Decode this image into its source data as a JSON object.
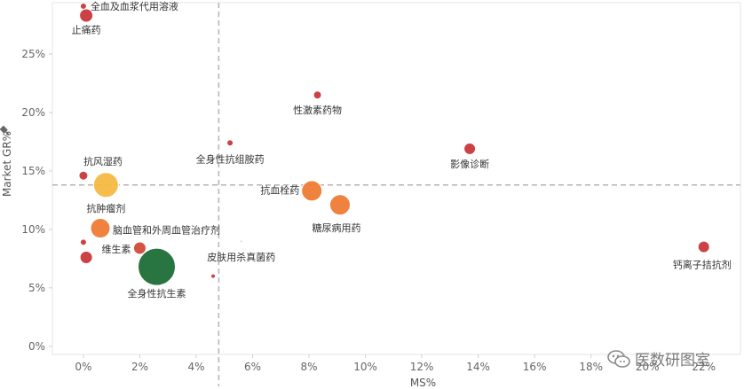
{
  "chart_data": {
    "type": "scatter",
    "xlabel": "MS%",
    "ylabel": "Market GR%",
    "xlim": [
      -0.011,
      0.233
    ],
    "ylim": [
      -0.007,
      0.294
    ],
    "x_ticks": [
      0,
      0.02,
      0.04,
      0.06,
      0.08,
      0.1,
      0.12,
      0.14,
      0.16,
      0.18,
      0.2,
      0.22
    ],
    "x_tick_labels": [
      "0%",
      "2%",
      "4%",
      "6%",
      "8%",
      "10%",
      "12%",
      "14%",
      "16%",
      "18%",
      "20%",
      "22%"
    ],
    "y_ticks": [
      0,
      0.05,
      0.1,
      0.15,
      0.2,
      0.25
    ],
    "y_tick_labels": [
      "0%",
      "5%",
      "10%",
      "15%",
      "20%",
      "25%"
    ],
    "reference_lines": {
      "x": 0.048,
      "y": 0.138
    },
    "grid": false,
    "points": [
      {
        "label": "全血及血浆代用溶液",
        "x": 0.0,
        "y": 0.291,
        "size": 3.5,
        "color": "#c8383a"
      },
      {
        "label": "止痛药",
        "x": 0.001,
        "y": 0.283,
        "size": 7.5,
        "color": "#c8383a"
      },
      {
        "label": "性激素药物",
        "x": 0.083,
        "y": 0.215,
        "size": 4.5,
        "color": "#c8383a"
      },
      {
        "label": "全身性抗组胺药",
        "x": 0.052,
        "y": 0.174,
        "size": 3.5,
        "color": "#c8383a"
      },
      {
        "label": "影像诊断",
        "x": 0.137,
        "y": 0.169,
        "size": 6.5,
        "color": "#c8383a"
      },
      {
        "label": "抗风湿药",
        "x": 0.0,
        "y": 0.146,
        "size": 5,
        "color": "#c8383a"
      },
      {
        "label": "抗肿瘤剂",
        "x": 0.008,
        "y": 0.138,
        "size": 14,
        "color": "#f5b942"
      },
      {
        "label": "抗血栓药",
        "x": 0.081,
        "y": 0.133,
        "size": 11.5,
        "color": "#ee7b35"
      },
      {
        "label": "糖尿病用药",
        "x": 0.091,
        "y": 0.121,
        "size": 11.5,
        "color": "#ee7b35"
      },
      {
        "label": "脑血管和外周血管治疗剂",
        "x": 0.006,
        "y": 0.101,
        "size": 11,
        "color": "#ee7b35"
      },
      {
        "label": "",
        "x": 0.0,
        "y": 0.089,
        "size": 3.5,
        "color": "#c8383a"
      },
      {
        "label": "维生素",
        "x": 0.02,
        "y": 0.084,
        "size": 7,
        "color": "#d24a3a"
      },
      {
        "label": "",
        "x": 0.001,
        "y": 0.076,
        "size": 7,
        "color": "#c8383a"
      },
      {
        "label": "皮肤用杀真菌药",
        "x": 0.056,
        "y": 0.09,
        "size": 1,
        "color": "#c8383a"
      },
      {
        "label": "全身性抗生素",
        "x": 0.026,
        "y": 0.068,
        "size": 21,
        "color": "#1d6e37"
      },
      {
        "label": "",
        "x": 0.046,
        "y": 0.06,
        "size": 2.5,
        "color": "#c8383a"
      },
      {
        "label": "钙离子拮抗剂",
        "x": 0.22,
        "y": 0.085,
        "size": 6.5,
        "color": "#c8383a"
      }
    ]
  },
  "watermark": {
    "text": "医数研图室"
  }
}
